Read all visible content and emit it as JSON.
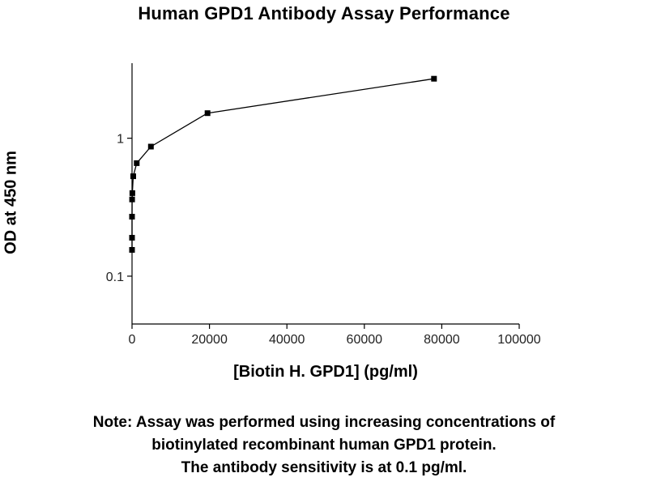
{
  "chart_data": {
    "type": "line",
    "title": "Human GPD1 Antibody Assay Performance",
    "xlabel": "[Biotin H. GPD1] (pg/ml)",
    "ylabel": "OD at 450 nm",
    "xscale": "linear",
    "yscale": "log",
    "xlim": [
      0,
      100000
    ],
    "ylim": [
      0.045,
      3.5
    ],
    "xticks": [
      0,
      20000,
      40000,
      60000,
      80000,
      100000
    ],
    "xtick_labels": [
      "0",
      "20000",
      "40000",
      "60000",
      "80000",
      "100000"
    ],
    "yticks": [
      0.1,
      1
    ],
    "ytick_labels": [
      "0.1",
      "1"
    ],
    "grid": false,
    "series": [
      {
        "marker": "square",
        "color": "#000000",
        "x": [
          0,
          1,
          5,
          19,
          76,
          305,
          1220,
          4880,
          19500,
          78000
        ],
        "y": [
          0.155,
          0.19,
          0.27,
          0.36,
          0.4,
          0.53,
          0.66,
          0.87,
          1.52,
          2.7
        ]
      }
    ]
  },
  "note": {
    "lines": [
      "Note: Assay was performed using increasing concentrations of",
      "biotinylated recombinant human GPD1 protein.",
      "The antibody sensitivity is at 0.1 pg/ml."
    ]
  }
}
